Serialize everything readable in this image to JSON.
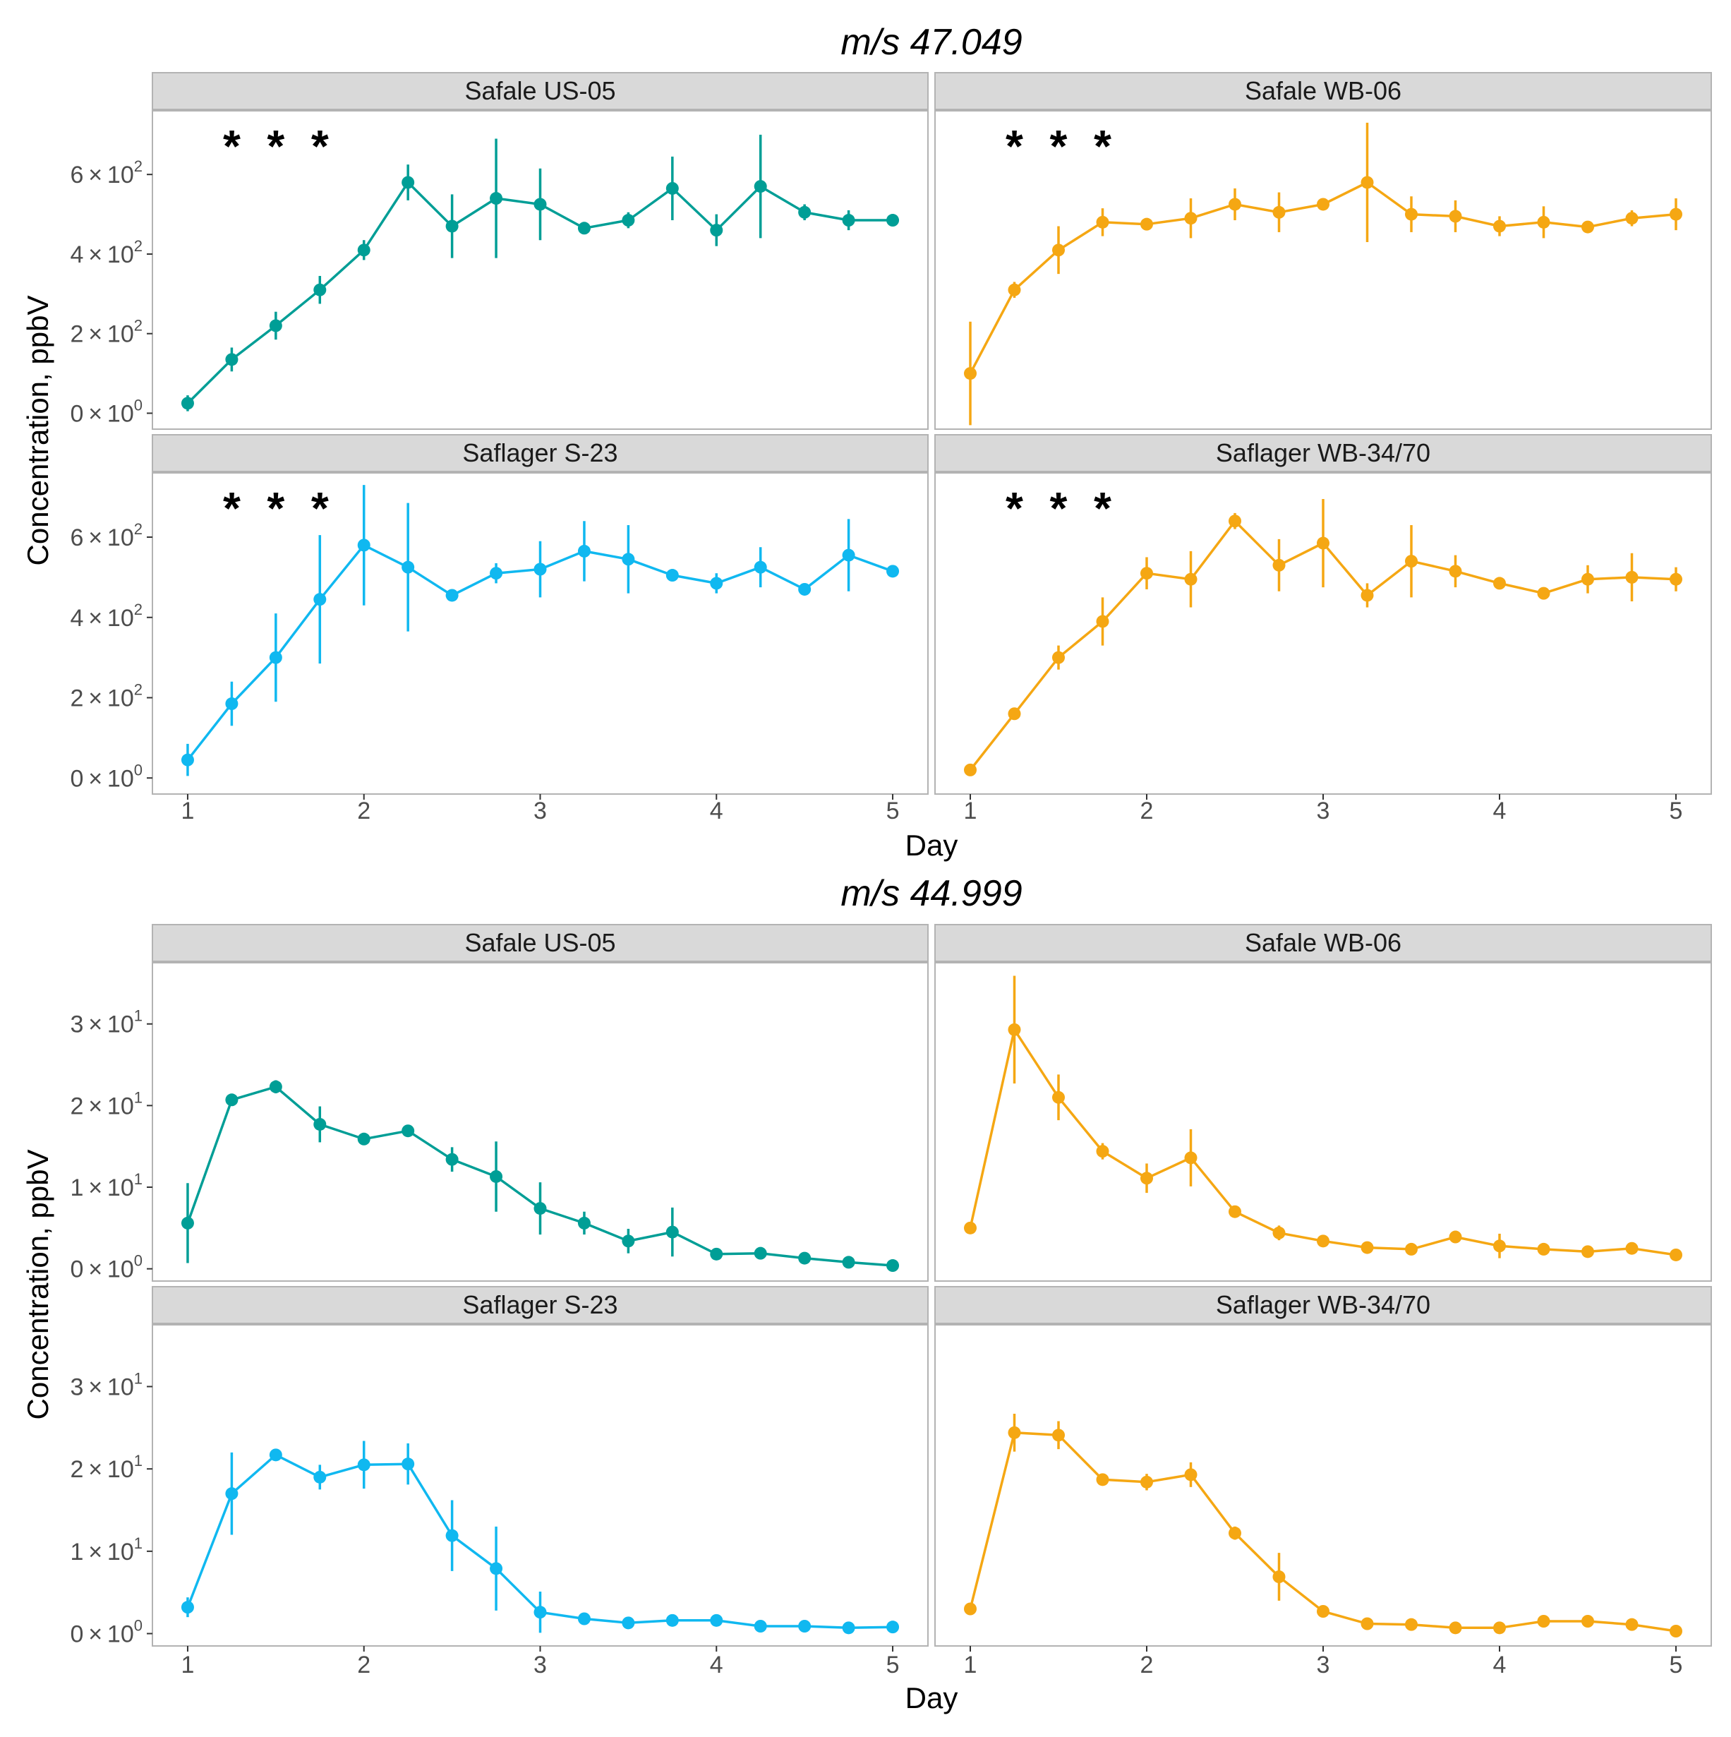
{
  "figure": {
    "titles": [
      "m/s 47.049",
      "m/s 44.999"
    ],
    "xlabel": "Day",
    "ylabel": "Concentration, ppbV",
    "x_ticks": [
      "1",
      "2",
      "3",
      "4",
      "5"
    ],
    "y_ticks_top": [
      {
        "mant": "0",
        "exp": "0"
      },
      {
        "mant": "2",
        "exp": "2"
      },
      {
        "mant": "4",
        "exp": "2"
      },
      {
        "mant": "6",
        "exp": "2"
      }
    ],
    "y_ticks_bottom": [
      {
        "mant": "0",
        "exp": "0"
      },
      {
        "mant": "1",
        "exp": "1"
      },
      {
        "mant": "2",
        "exp": "1"
      },
      {
        "mant": "3",
        "exp": "1"
      }
    ],
    "times_symbol": "×",
    "tick_base": "10",
    "significance_marker": "*"
  },
  "colors": {
    "Safale US-05": "#009E96",
    "Safale WB-06": "#F5A713",
    "Saflager S-23": "#10B8F0",
    "Saflager WB-34/70": "#F5A713",
    "strip_bg": "#d9d9d9",
    "panel_border": "#b3b3b3"
  },
  "chart_data": [
    {
      "type": "line",
      "title": "m/s 47.049",
      "xlabel": "Day",
      "ylabel": "Concentration, ppbV",
      "xlim": [
        0.8,
        5.2
      ],
      "ylim": [
        -40,
        760
      ],
      "x": [
        1,
        1.25,
        1.5,
        1.75,
        2,
        2.25,
        2.5,
        2.75,
        3,
        3.25,
        3.5,
        3.75,
        4,
        4.25,
        4.5,
        4.75,
        5
      ],
      "series": [
        {
          "name": "Safale US-05",
          "values": [
            25,
            135,
            220,
            310,
            410,
            580,
            470,
            540,
            525,
            465,
            485,
            565,
            460,
            570,
            505,
            485,
            485
          ],
          "errors": [
            20,
            30,
            35,
            35,
            25,
            45,
            80,
            150,
            90,
            15,
            20,
            80,
            40,
            130,
            20,
            25,
            15
          ],
          "significance": [
            1.25,
            1.5,
            1.75
          ]
        },
        {
          "name": "Safale WB-06",
          "values": [
            100,
            310,
            410,
            480,
            475,
            490,
            525,
            505,
            525,
            580,
            500,
            495,
            470,
            480,
            468,
            490,
            500
          ],
          "errors": [
            130,
            20,
            60,
            35,
            15,
            50,
            40,
            50,
            15,
            150,
            45,
            40,
            25,
            40,
            15,
            20,
            40
          ],
          "significance": [
            1.25,
            1.5,
            1.75
          ]
        },
        {
          "name": "Saflager S-23",
          "values": [
            45,
            185,
            300,
            445,
            580,
            525,
            455,
            510,
            520,
            565,
            545,
            505,
            485,
            525,
            470,
            555,
            515
          ],
          "errors": [
            40,
            55,
            110,
            160,
            150,
            160,
            15,
            25,
            70,
            75,
            85,
            10,
            25,
            50,
            15,
            90,
            15
          ],
          "significance": [
            1.25,
            1.5,
            1.75
          ]
        },
        {
          "name": "Saflager WB-34/70",
          "values": [
            20,
            160,
            300,
            390,
            510,
            495,
            640,
            530,
            585,
            455,
            540,
            515,
            485,
            460,
            495,
            500,
            495
          ],
          "errors": [
            10,
            15,
            30,
            60,
            40,
            70,
            20,
            65,
            110,
            30,
            90,
            40,
            15,
            15,
            35,
            60,
            30
          ],
          "significance": [
            1.25,
            1.5,
            1.75
          ]
        }
      ]
    },
    {
      "type": "line",
      "title": "m/s 44.999",
      "xlabel": "Day",
      "ylabel": "Concentration, ppbV",
      "xlim": [
        0.8,
        5.2
      ],
      "ylim": [
        -1.5,
        37.5
      ],
      "x": [
        1,
        1.25,
        1.5,
        1.75,
        2,
        2.25,
        2.5,
        2.75,
        3,
        3.25,
        3.5,
        3.75,
        4,
        4.25,
        4.5,
        4.75,
        5
      ],
      "series": [
        {
          "name": "Safale US-05",
          "values": [
            5.6,
            20.7,
            22.3,
            17.7,
            15.9,
            16.9,
            13.4,
            11.3,
            7.4,
            5.6,
            3.4,
            4.5,
            1.8,
            1.9,
            1.3,
            0.8,
            0.4
          ],
          "errors": [
            4.9,
            0.5,
            0.8,
            2.2,
            0.5,
            0.5,
            1.5,
            4.3,
            3.2,
            1.4,
            1.5,
            3.0,
            0.3,
            0.3,
            0.5,
            0.3,
            0.3
          ],
          "significance": []
        },
        {
          "name": "Safale WB-06",
          "values": [
            5.0,
            29.3,
            21.0,
            14.4,
            11.1,
            13.6,
            7.0,
            4.4,
            3.4,
            2.6,
            2.4,
            3.9,
            2.8,
            2.4,
            2.1,
            2.5,
            1.7
          ],
          "errors": [
            0.2,
            6.6,
            2.8,
            1.0,
            1.8,
            3.5,
            0.4,
            0.9,
            0.4,
            0.3,
            0.3,
            0.5,
            1.5,
            0.3,
            0.3,
            0.3,
            0.3
          ],
          "significance": []
        },
        {
          "name": "Saflager S-23",
          "values": [
            3.2,
            17.0,
            21.7,
            19.0,
            20.5,
            20.6,
            11.9,
            7.9,
            2.6,
            1.8,
            1.3,
            1.6,
            1.6,
            0.9,
            0.9,
            0.7,
            0.8
          ],
          "errors": [
            1.2,
            5.0,
            0.5,
            1.5,
            2.9,
            2.5,
            4.3,
            5.1,
            2.5,
            0.4,
            0.4,
            0.4,
            0.3,
            0.3,
            0.3,
            0.3,
            0.3
          ],
          "significance": []
        },
        {
          "name": "Saflager WB-34/70",
          "values": [
            3.0,
            24.4,
            24.1,
            18.7,
            18.4,
            19.3,
            12.2,
            6.9,
            2.7,
            1.2,
            1.1,
            0.7,
            0.7,
            1.5,
            1.5,
            1.1,
            0.3
          ],
          "errors": [
            0.2,
            2.3,
            1.7,
            0.5,
            1.0,
            1.5,
            0.8,
            2.9,
            0.3,
            0.2,
            0.2,
            0.2,
            0.2,
            0.3,
            0.3,
            0.3,
            0.3
          ],
          "significance": []
        }
      ]
    }
  ]
}
